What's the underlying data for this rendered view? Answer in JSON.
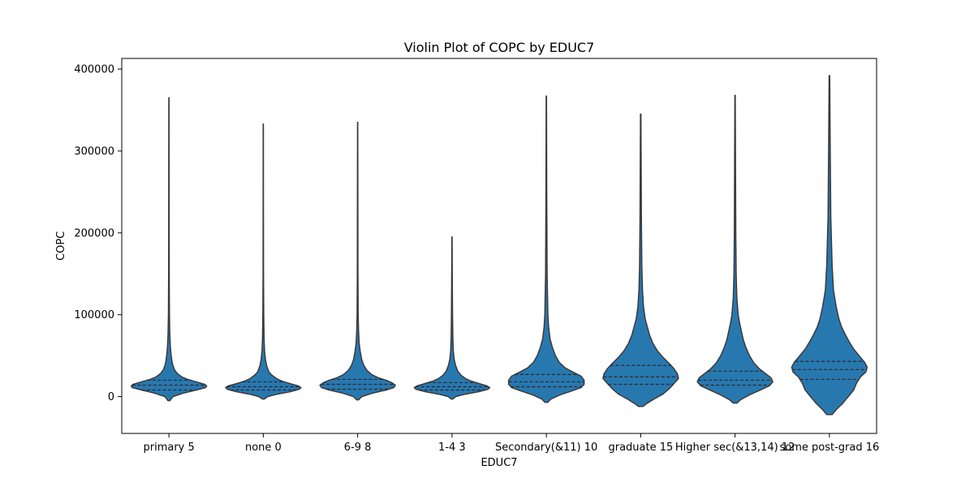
{
  "chart_data": {
    "type": "violin",
    "title": "Violin Plot of COPC by EDUC7",
    "xlabel": "EDUC7",
    "ylabel": "COPC",
    "ylim": [
      -45000,
      413000
    ],
    "yticks": [
      0,
      100000,
      200000,
      300000,
      400000
    ],
    "ytick_labels": [
      "0",
      "100000",
      "200000",
      "300000",
      "400000"
    ],
    "grid": false,
    "inner": "quartile",
    "color": "#2878b0",
    "edge_color": "#3b3b3b",
    "categories": [
      "primary 5",
      "none 0",
      "6-9 8",
      "1-4 3",
      "Secondary(&11) 10",
      "graduate 15",
      "Higher sec(&13,14) 12",
      "some post-grad 16"
    ],
    "series": [
      {
        "min": -5000,
        "max": 365000,
        "quartiles": [
          8000,
          14000,
          20000
        ],
        "density": [
          [
            -5000,
            0.02
          ],
          [
            0,
            0.08
          ],
          [
            4000,
            0.28
          ],
          [
            8000,
            0.55
          ],
          [
            11000,
            0.74
          ],
          [
            13000,
            0.76
          ],
          [
            15000,
            0.72
          ],
          [
            18000,
            0.55
          ],
          [
            21000,
            0.38
          ],
          [
            24000,
            0.26
          ],
          [
            28000,
            0.17
          ],
          [
            33000,
            0.11
          ],
          [
            40000,
            0.07
          ],
          [
            50000,
            0.045
          ],
          [
            60000,
            0.03
          ],
          [
            75000,
            0.018
          ],
          [
            100000,
            0.01
          ],
          [
            150000,
            0.006
          ],
          [
            250000,
            0.004
          ],
          [
            365000,
            0.002
          ]
        ]
      },
      {
        "min": -3000,
        "max": 333000,
        "quartiles": [
          8000,
          12000,
          18000
        ],
        "density": [
          [
            -3000,
            0.02
          ],
          [
            0,
            0.1
          ],
          [
            3000,
            0.32
          ],
          [
            6000,
            0.62
          ],
          [
            9000,
            0.82
          ],
          [
            11000,
            0.86
          ],
          [
            13000,
            0.8
          ],
          [
            16000,
            0.6
          ],
          [
            19000,
            0.42
          ],
          [
            22000,
            0.3
          ],
          [
            26000,
            0.2
          ],
          [
            30000,
            0.13
          ],
          [
            37000,
            0.08
          ],
          [
            45000,
            0.05
          ],
          [
            55000,
            0.03
          ],
          [
            70000,
            0.018
          ],
          [
            100000,
            0.01
          ],
          [
            150000,
            0.005
          ],
          [
            250000,
            0.003
          ],
          [
            333000,
            0.002
          ]
        ]
      },
      {
        "min": -4000,
        "max": 335000,
        "quartiles": [
          9000,
          15000,
          21000
        ],
        "density": [
          [
            -4000,
            0.02
          ],
          [
            0,
            0.08
          ],
          [
            4000,
            0.28
          ],
          [
            8000,
            0.55
          ],
          [
            11000,
            0.7
          ],
          [
            14000,
            0.73
          ],
          [
            17000,
            0.66
          ],
          [
            20000,
            0.55
          ],
          [
            23000,
            0.4
          ],
          [
            27000,
            0.27
          ],
          [
            32000,
            0.18
          ],
          [
            38000,
            0.12
          ],
          [
            45000,
            0.08
          ],
          [
            55000,
            0.05
          ],
          [
            65000,
            0.03
          ],
          [
            80000,
            0.018
          ],
          [
            100000,
            0.01
          ],
          [
            150000,
            0.006
          ],
          [
            250000,
            0.004
          ],
          [
            335000,
            0.002
          ]
        ]
      },
      {
        "min": -3000,
        "max": 195000,
        "quartiles": [
          8000,
          12000,
          17000
        ],
        "density": [
          [
            -3000,
            0.02
          ],
          [
            0,
            0.08
          ],
          [
            3000,
            0.3
          ],
          [
            6000,
            0.6
          ],
          [
            9000,
            0.8
          ],
          [
            11000,
            0.84
          ],
          [
            13000,
            0.78
          ],
          [
            16000,
            0.6
          ],
          [
            19000,
            0.42
          ],
          [
            22000,
            0.3
          ],
          [
            26000,
            0.2
          ],
          [
            31000,
            0.13
          ],
          [
            38000,
            0.08
          ],
          [
            45000,
            0.05
          ],
          [
            55000,
            0.03
          ],
          [
            70000,
            0.02
          ],
          [
            100000,
            0.012
          ],
          [
            150000,
            0.006
          ],
          [
            195000,
            0.002
          ]
        ]
      },
      {
        "min": -7000,
        "max": 367000,
        "quartiles": [
          12000,
          18000,
          27000
        ],
        "density": [
          [
            -7000,
            0.02
          ],
          [
            -3000,
            0.06
          ],
          [
            2000,
            0.18
          ],
          [
            7000,
            0.34
          ],
          [
            11000,
            0.46
          ],
          [
            15000,
            0.5
          ],
          [
            20000,
            0.5
          ],
          [
            25000,
            0.46
          ],
          [
            30000,
            0.35
          ],
          [
            35000,
            0.25
          ],
          [
            42000,
            0.17
          ],
          [
            50000,
            0.12
          ],
          [
            60000,
            0.08
          ],
          [
            70000,
            0.05
          ],
          [
            85000,
            0.03
          ],
          [
            100000,
            0.02
          ],
          [
            150000,
            0.01
          ],
          [
            250000,
            0.005
          ],
          [
            367000,
            0.002
          ]
        ]
      },
      {
        "min": -12000,
        "max": 345000,
        "quartiles": [
          15000,
          24000,
          38000
        ],
        "density": [
          [
            -12000,
            0.02
          ],
          [
            -8000,
            0.06
          ],
          [
            -3000,
            0.12
          ],
          [
            3000,
            0.2
          ],
          [
            10000,
            0.26
          ],
          [
            16000,
            0.3
          ],
          [
            22000,
            0.34
          ],
          [
            28000,
            0.33
          ],
          [
            34000,
            0.3
          ],
          [
            40000,
            0.26
          ],
          [
            48000,
            0.2
          ],
          [
            56000,
            0.15
          ],
          [
            65000,
            0.11
          ],
          [
            75000,
            0.08
          ],
          [
            85000,
            0.06
          ],
          [
            95000,
            0.04
          ],
          [
            110000,
            0.025
          ],
          [
            130000,
            0.016
          ],
          [
            160000,
            0.01
          ],
          [
            220000,
            0.006
          ],
          [
            345000,
            0.002
          ]
        ]
      },
      {
        "min": -8000,
        "max": 368000,
        "quartiles": [
          14000,
          20000,
          31000
        ],
        "density": [
          [
            -8000,
            0.02
          ],
          [
            -4000,
            0.06
          ],
          [
            2000,
            0.16
          ],
          [
            8000,
            0.28
          ],
          [
            13000,
            0.38
          ],
          [
            18000,
            0.42
          ],
          [
            23000,
            0.4
          ],
          [
            28000,
            0.34
          ],
          [
            34000,
            0.27
          ],
          [
            41000,
            0.21
          ],
          [
            50000,
            0.16
          ],
          [
            60000,
            0.12
          ],
          [
            70000,
            0.09
          ],
          [
            80000,
            0.07
          ],
          [
            90000,
            0.05
          ],
          [
            100000,
            0.035
          ],
          [
            120000,
            0.02
          ],
          [
            150000,
            0.012
          ],
          [
            200000,
            0.008
          ],
          [
            280000,
            0.005
          ],
          [
            368000,
            0.002
          ]
        ]
      },
      {
        "min": -22000,
        "max": 392000,
        "quartiles": [
          21000,
          33000,
          43000
        ],
        "density": [
          [
            -22000,
            0.02
          ],
          [
            -16000,
            0.05
          ],
          [
            -8000,
            0.1
          ],
          [
            0,
            0.14
          ],
          [
            8000,
            0.18
          ],
          [
            16000,
            0.2
          ],
          [
            24000,
            0.23
          ],
          [
            30000,
            0.27
          ],
          [
            36000,
            0.28
          ],
          [
            42000,
            0.26
          ],
          [
            50000,
            0.22
          ],
          [
            58000,
            0.18
          ],
          [
            66000,
            0.15
          ],
          [
            75000,
            0.12
          ],
          [
            85000,
            0.09
          ],
          [
            95000,
            0.07
          ],
          [
            110000,
            0.05
          ],
          [
            130000,
            0.03
          ],
          [
            160000,
            0.02
          ],
          [
            220000,
            0.01
          ],
          [
            300000,
            0.006
          ],
          [
            392000,
            0.002
          ]
        ]
      }
    ]
  }
}
